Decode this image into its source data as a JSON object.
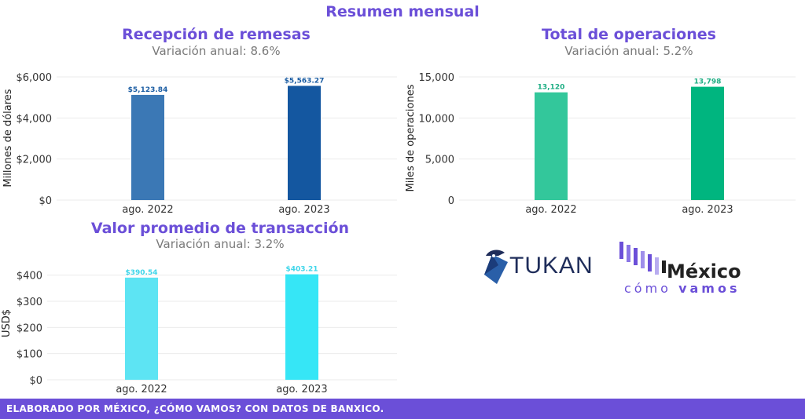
{
  "page_title": "Resumen mensual",
  "footer": "ELABORADO POR MÉXICO, ¿CÓMO VAMOS? CON DATOS DE BANXICO.",
  "logos": {
    "tukan": "TUKAN",
    "mcv_line1": "México",
    "mcv_line2_a": "cómo",
    "mcv_line2_b": "vamos"
  },
  "chart_data": [
    {
      "type": "bar",
      "title": "Recepción de remesas",
      "subtitle": "Variación anual: 8.6%",
      "ylabel": "Millones de dólares",
      "categories": [
        "ago. 2022",
        "ago. 2023"
      ],
      "values": [
        5123.84,
        5563.27
      ],
      "value_labels": [
        "$5,123.84",
        "$5,563.27"
      ],
      "ylim": [
        0,
        6000
      ],
      "yticks": [
        0,
        2000,
        4000,
        6000
      ],
      "ytick_labels": [
        "$0",
        "$2,000",
        "$4,000",
        "$6,000"
      ],
      "colors": [
        "#3b78b5",
        "#1457a0"
      ],
      "label_color": "#1b5da3",
      "grid": true
    },
    {
      "type": "bar",
      "title": "Total de operaciones",
      "subtitle": "Variación anual: 5.2%",
      "ylabel": "Miles de operaciones",
      "categories": [
        "ago. 2022",
        "ago. 2023"
      ],
      "values": [
        13120,
        13798
      ],
      "value_labels": [
        "13,120",
        "13,798"
      ],
      "ylim": [
        0,
        15000
      ],
      "yticks": [
        0,
        5000,
        10000,
        15000
      ],
      "ytick_labels": [
        "0",
        "5,000",
        "10,000",
        "15,000"
      ],
      "colors": [
        "#33c79b",
        "#00b57f"
      ],
      "label_color": "#1fae84",
      "grid": true
    },
    {
      "type": "bar",
      "title": "Valor promedio de transacción",
      "subtitle": "Variación anual: 3.2%",
      "ylabel": "USD$",
      "categories": [
        "ago. 2022",
        "ago. 2023"
      ],
      "values": [
        390.54,
        403.21
      ],
      "value_labels": [
        "$390.54",
        "$403.21"
      ],
      "ylim": [
        0,
        420
      ],
      "yticks": [
        0,
        100,
        200,
        300,
        400
      ],
      "ytick_labels": [
        "$0",
        "$100",
        "$200",
        "$300",
        "$400"
      ],
      "colors": [
        "#5de4f3",
        "#36e6f6"
      ],
      "label_color": "#3fd6ea",
      "grid": true
    }
  ]
}
